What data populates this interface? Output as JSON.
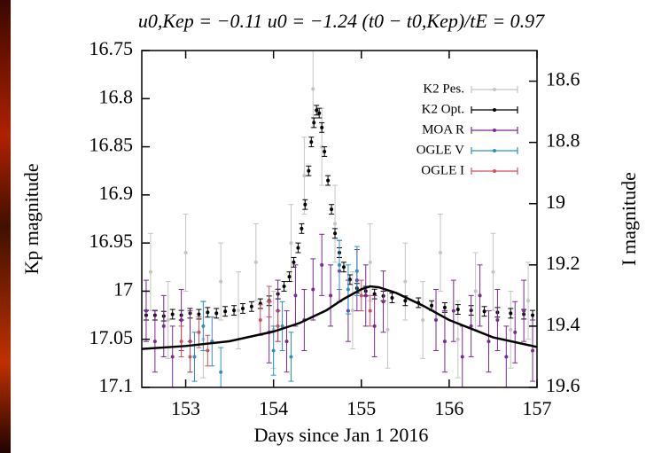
{
  "chart_data": {
    "type": "scatter",
    "title": "u0,Kep = −0.11    u0 = −1.24    (t0 − t0,Kep)/tE = 0.97",
    "x_label": "Days since Jan 1 2016",
    "y_label": "Kp magnitude",
    "y2_label": "I magnitude",
    "xlim": [
      152.5,
      157
    ],
    "ylim": [
      17.1,
      16.75
    ],
    "y2lim": [
      19.6,
      18.5
    ],
    "xticks": [
      153,
      154,
      155,
      156,
      157
    ],
    "yticks": [
      16.75,
      16.8,
      16.85,
      16.9,
      16.95,
      17,
      17.05,
      17.1
    ],
    "y2ticks": [
      18.6,
      18.8,
      19,
      19.2,
      19.4,
      19.6
    ],
    "legend": "upper right",
    "series": [
      {
        "name": "K2 Pes.",
        "color": "#c4c4c4",
        "error": 0.04,
        "x": [
          152.6,
          152.8,
          153.0,
          153.2,
          153.4,
          153.6,
          153.8,
          154.0,
          154.2,
          154.35,
          154.45,
          154.55,
          154.7,
          154.9,
          155.1,
          155.3,
          155.5,
          155.7,
          155.9,
          156.1,
          156.3,
          156.5,
          156.7,
          156.9
        ],
        "values": [
          16.98,
          17.03,
          16.96,
          17.05,
          16.99,
          17.02,
          16.97,
          17.04,
          16.95,
          16.88,
          16.79,
          16.85,
          16.93,
          17.02,
          16.97,
          17.04,
          16.99,
          17.03,
          16.96,
          17.05,
          17.0,
          16.98,
          17.04,
          17.01
        ]
      },
      {
        "name": "K2 Opt.",
        "color": "#000000",
        "error": 0.005,
        "x": [
          152.55,
          152.65,
          152.75,
          152.85,
          152.95,
          153.05,
          153.15,
          153.25,
          153.35,
          153.45,
          153.55,
          153.65,
          153.75,
          153.85,
          153.95,
          154.05,
          154.12,
          154.18,
          154.23,
          154.28,
          154.32,
          154.36,
          154.4,
          154.43,
          154.46,
          154.49,
          154.52,
          154.55,
          154.58,
          154.62,
          154.66,
          154.7,
          154.75,
          154.8,
          154.87,
          154.95,
          155.05,
          155.15,
          155.25,
          155.35,
          155.5,
          155.65,
          155.8,
          155.95,
          156.1,
          156.25,
          156.4,
          156.55,
          156.7,
          156.85,
          156.95
        ],
        "values": [
          17.025,
          17.025,
          17.026,
          17.024,
          17.025,
          17.023,
          17.024,
          17.022,
          17.023,
          17.021,
          17.02,
          17.018,
          17.016,
          17.013,
          17.01,
          17.003,
          16.995,
          16.985,
          16.97,
          16.955,
          16.935,
          16.91,
          16.875,
          16.845,
          16.825,
          16.812,
          16.815,
          16.83,
          16.855,
          16.885,
          16.915,
          16.94,
          16.96,
          16.975,
          16.988,
          16.997,
          17.0,
          17.003,
          17.005,
          17.007,
          17.01,
          17.012,
          17.015,
          17.017,
          17.019,
          17.02,
          17.021,
          17.022,
          17.023,
          17.024,
          17.025
        ]
      },
      {
        "name": "MOA R",
        "color": "#7b2a90",
        "axis": "y2",
        "error": 0.1,
        "x": [
          152.55,
          152.65,
          152.75,
          152.85,
          152.95,
          153.05,
          153.95,
          154.05,
          154.15,
          154.25,
          154.35,
          154.45,
          154.55,
          154.65,
          154.75,
          154.85,
          154.95,
          155.05,
          155.15,
          155.25,
          155.85,
          155.95,
          156.05,
          156.15,
          156.25,
          156.35,
          156.45,
          156.55,
          156.65,
          156.75,
          156.85,
          156.95
        ],
        "values": [
          19.35,
          19.45,
          19.4,
          19.5,
          19.38,
          19.45,
          19.42,
          19.35,
          19.45,
          19.3,
          19.38,
          19.28,
          19.2,
          19.3,
          19.22,
          19.35,
          19.25,
          19.3,
          19.4,
          19.32,
          19.38,
          19.45,
          19.35,
          19.5,
          19.4,
          19.3,
          19.45,
          19.38,
          19.5,
          19.42,
          19.35,
          19.48
        ]
      },
      {
        "name": "OGLE V",
        "color": "#2f90c0",
        "axis": "y2",
        "error": 0.08,
        "x": [
          153.1,
          153.2,
          153.3,
          153.4,
          154.0,
          154.1,
          154.2,
          154.75,
          154.85,
          154.95
        ],
        "values": [
          19.5,
          19.4,
          19.45,
          19.55,
          19.48,
          19.4,
          19.5,
          19.2,
          19.28,
          19.22
        ]
      },
      {
        "name": "OGLE I",
        "color": "#d0505a",
        "axis": "y2",
        "error": 0.05,
        "x": [
          152.95,
          153.05,
          153.15,
          153.25,
          153.85,
          153.95,
          154.05,
          155.0,
          155.1
        ],
        "values": [
          19.45,
          19.5,
          19.42,
          19.48,
          19.38,
          19.32,
          19.4,
          19.3,
          19.35
        ]
      },
      {
        "type": "line",
        "color": "#000000",
        "x": [
          152.5,
          153,
          153.5,
          154,
          154.3,
          154.6,
          154.8,
          155,
          155.1,
          155.2,
          155.4,
          155.7,
          156,
          156.5,
          157
        ],
        "values": [
          17.06,
          17.057,
          17.052,
          17.042,
          17.033,
          17.02,
          17.008,
          16.998,
          16.995,
          16.996,
          17.002,
          17.015,
          17.03,
          17.048,
          17.058
        ]
      }
    ]
  }
}
